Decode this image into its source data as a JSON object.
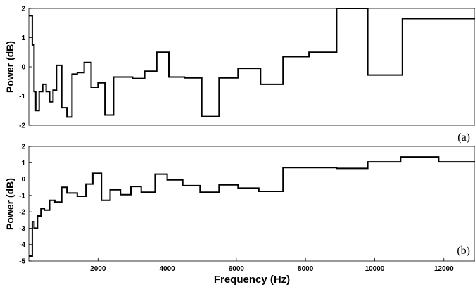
{
  "chart_data": [
    {
      "type": "line",
      "panel_label": "(a)",
      "ylabel": "Power (dB)",
      "xlim": [
        0,
        12900
      ],
      "ylim": [
        -2,
        2
      ],
      "yticks": [
        "-2",
        "-1",
        "0",
        "1",
        "2"
      ],
      "ytick_values": [
        -2,
        -1,
        0,
        1,
        2
      ],
      "grid": false,
      "series": [
        {
          "step": true,
          "x": [
            0,
            100,
            150,
            200,
            300,
            400,
            500,
            600,
            700,
            800,
            950,
            1100,
            1250,
            1400,
            1600,
            1800,
            2000,
            2200,
            2450,
            2700,
            3000,
            3350,
            3700,
            4050,
            4500,
            5000,
            5500,
            6050,
            6700,
            7350,
            8100,
            8900,
            9800,
            10800,
            11850,
            12900
          ],
          "y": [
            1.75,
            0.75,
            -0.85,
            -1.5,
            -0.85,
            -0.6,
            -0.85,
            -1.2,
            -0.8,
            0.05,
            -1.4,
            -1.72,
            -0.25,
            -0.2,
            0.15,
            -0.7,
            -0.55,
            -1.65,
            -0.35,
            -0.35,
            -0.4,
            -0.15,
            0.5,
            -0.35,
            -0.38,
            -1.7,
            -0.38,
            -0.05,
            -0.6,
            0.35,
            0.5,
            2.0,
            -0.28,
            1.65,
            1.65,
            1.65
          ]
        }
      ]
    },
    {
      "type": "line",
      "panel_label": "(b)",
      "ylabel": "Power (dB)",
      "xlabel": "Frequency (Hz)",
      "xlim": [
        0,
        12900
      ],
      "ylim": [
        -5,
        2
      ],
      "xticks": [
        "2000",
        "4000",
        "6000",
        "8000",
        "10000",
        "12000"
      ],
      "xtick_values": [
        2000,
        4000,
        6000,
        8000,
        10000,
        12000
      ],
      "yticks": [
        "-5",
        "-4",
        "-3",
        "-2",
        "-1",
        "0",
        "1",
        "2"
      ],
      "ytick_values": [
        -5,
        -4,
        -3,
        -2,
        -1,
        0,
        1,
        2
      ],
      "grid": false,
      "series": [
        {
          "step": true,
          "x": [
            0,
            100,
            150,
            250,
            350,
            450,
            600,
            750,
            950,
            1100,
            1400,
            1650,
            1850,
            2100,
            2350,
            2650,
            2950,
            3250,
            3650,
            4000,
            4450,
            4950,
            5500,
            6050,
            6650,
            7350,
            8050,
            8900,
            9800,
            10750,
            11850,
            12900
          ],
          "y": [
            -4.7,
            -2.6,
            -3.0,
            -2.25,
            -1.8,
            -1.9,
            -1.3,
            -1.4,
            -0.5,
            -0.85,
            -1.05,
            -0.3,
            0.35,
            -1.3,
            -0.65,
            -0.95,
            -0.45,
            -0.8,
            0.3,
            -0.05,
            -0.4,
            -0.8,
            -0.35,
            -0.55,
            -0.75,
            0.7,
            0.7,
            0.65,
            1.05,
            1.35,
            1.05,
            1.05
          ]
        }
      ]
    }
  ]
}
